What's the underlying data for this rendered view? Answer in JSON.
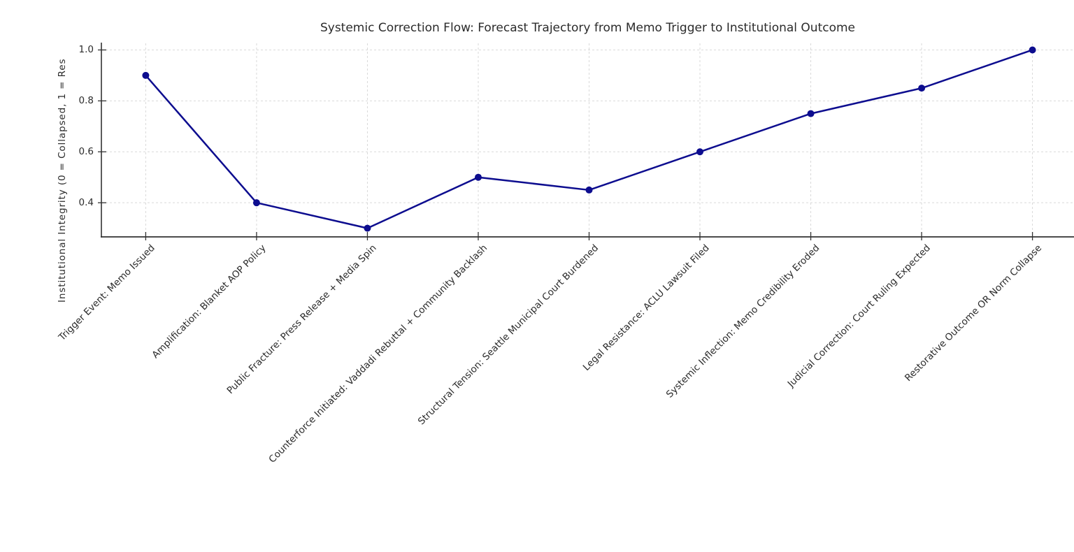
{
  "chart_data": {
    "type": "line",
    "title": "Systemic Correction Flow: Forecast Trajectory from Memo Trigger to Institutional Outcome",
    "ylabel": "Institutional Integrity (0 = Collapsed, 1 = Res",
    "xlabel": "",
    "categories": [
      "Trigger Event: Memo Issued",
      "Amplification: Blanket AOP Policy",
      "Public Fracture: Press Release + Media Spin",
      "Counterforce Initiated: Vaddadi Rebuttal + Community Backlash",
      "Structural Tension: Seattle Municipal Court Burdened",
      "Legal Resistance: ACLU Lawsuit Filed",
      "Systemic Inflection: Memo Credibility Eroded",
      "Judicial Correction: Court Ruling Expected",
      "Restorative Outcome OR Norm Collapse"
    ],
    "values": [
      0.9,
      0.4,
      0.3,
      0.5,
      0.45,
      0.6,
      0.75,
      0.85,
      1.0
    ],
    "yticks": [
      0.4,
      0.6,
      0.8,
      1.0
    ],
    "ytick_labels": [
      "0.4",
      "0.6",
      "0.8",
      "1.0"
    ],
    "ylim": [
      0.266,
      1.026
    ],
    "xlim": [
      -0.4,
      8.4
    ],
    "grid": true,
    "grid_style": "dashed",
    "legend": "none",
    "marker": "circle",
    "x_tick_rotation_deg": 45,
    "colors": {
      "line": "#0d0d8f",
      "marker": "#0d0d8f",
      "grid": "#d9d9d9",
      "axis": "#333333",
      "text": "#2b2b2b"
    }
  }
}
